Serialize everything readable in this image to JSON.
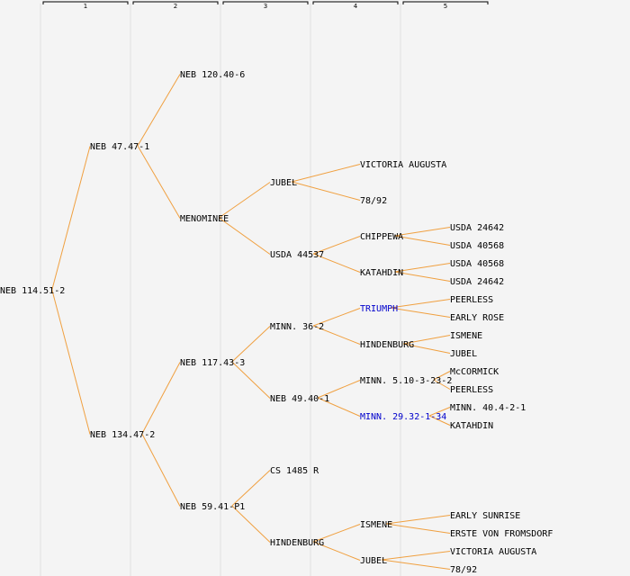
{
  "generations": [
    "1",
    "2",
    "3",
    "4",
    "5"
  ],
  "colors": {
    "line": "#f0a040",
    "link": "#0000cc",
    "text": "#000000",
    "column": "#e0e0e0",
    "background": "#f4f4f4"
  },
  "nodes": [
    {
      "id": "n0",
      "label": "NEB 114.51-2",
      "gen": 1,
      "row": 16
    },
    {
      "id": "n1",
      "label": "NEB 47.47-1",
      "gen": 2,
      "row": 8,
      "parent": "n0"
    },
    {
      "id": "n2",
      "label": "NEB 134.47-2",
      "gen": 2,
      "row": 24,
      "parent": "n0"
    },
    {
      "id": "n3",
      "label": "NEB 120.40-6",
      "gen": 3,
      "row": 4,
      "parent": "n1"
    },
    {
      "id": "n4",
      "label": "MENOMINEE",
      "gen": 3,
      "row": 12,
      "parent": "n1"
    },
    {
      "id": "n5",
      "label": "NEB 117.43-3",
      "gen": 3,
      "row": 20,
      "parent": "n2"
    },
    {
      "id": "n6",
      "label": "NEB 59.41-P1",
      "gen": 3,
      "row": 28,
      "parent": "n2"
    },
    {
      "id": "n7",
      "label": "JUBEL",
      "gen": 4,
      "row": 10,
      "parent": "n4"
    },
    {
      "id": "n8",
      "label": "USDA 44537",
      "gen": 4,
      "row": 14,
      "parent": "n4"
    },
    {
      "id": "n9",
      "label": "MINN. 36-2",
      "gen": 4,
      "row": 18,
      "parent": "n5"
    },
    {
      "id": "n10",
      "label": "NEB 49.40-1",
      "gen": 4,
      "row": 22,
      "parent": "n5"
    },
    {
      "id": "n11",
      "label": "CS 1485 R",
      "gen": 4,
      "row": 26,
      "parent": "n6"
    },
    {
      "id": "n12",
      "label": "HINDENBURG",
      "gen": 4,
      "row": 30,
      "parent": "n6"
    },
    {
      "id": "n13",
      "label": "VICTORIA AUGUSTA",
      "gen": 5,
      "row": 9,
      "parent": "n7"
    },
    {
      "id": "n14",
      "label": "78/92",
      "gen": 5,
      "row": 11,
      "parent": "n7"
    },
    {
      "id": "n15",
      "label": "CHIPPEWA",
      "gen": 5,
      "row": 13,
      "parent": "n8"
    },
    {
      "id": "n16",
      "label": "KATAHDIN",
      "gen": 5,
      "row": 15,
      "parent": "n8"
    },
    {
      "id": "n17",
      "label": "TRIUMPH",
      "gen": 5,
      "row": 17,
      "parent": "n9",
      "link": true
    },
    {
      "id": "n18",
      "label": "HINDENBURG",
      "gen": 5,
      "row": 19,
      "parent": "n9"
    },
    {
      "id": "n19",
      "label": "MINN. 5.10-3-23-2",
      "gen": 5,
      "row": 21,
      "parent": "n10"
    },
    {
      "id": "n20",
      "label": "MINN. 29.32-1-34",
      "gen": 5,
      "row": 23,
      "parent": "n10",
      "link": true
    },
    {
      "id": "n21",
      "label": "ISMENE",
      "gen": 5,
      "row": 29,
      "parent": "n12"
    },
    {
      "id": "n22",
      "label": "JUBEL",
      "gen": 5,
      "row": 31,
      "parent": "n12"
    },
    {
      "id": "n23",
      "label": "USDA 24642",
      "gen": 6,
      "row": 12.5,
      "parent": "n15"
    },
    {
      "id": "n24",
      "label": "USDA 40568",
      "gen": 6,
      "row": 13.5,
      "parent": "n15"
    },
    {
      "id": "n25",
      "label": "USDA 40568",
      "gen": 6,
      "row": 14.5,
      "parent": "n16"
    },
    {
      "id": "n26",
      "label": "USDA 24642",
      "gen": 6,
      "row": 15.5,
      "parent": "n16"
    },
    {
      "id": "n27",
      "label": "PEERLESS",
      "gen": 6,
      "row": 16.5,
      "parent": "n17"
    },
    {
      "id": "n28",
      "label": "EARLY ROSE",
      "gen": 6,
      "row": 17.5,
      "parent": "n17"
    },
    {
      "id": "n29",
      "label": "ISMENE",
      "gen": 6,
      "row": 18.5,
      "parent": "n18"
    },
    {
      "id": "n30",
      "label": "JUBEL",
      "gen": 6,
      "row": 19.5,
      "parent": "n18"
    },
    {
      "id": "n31",
      "label": "McCORMICK",
      "gen": 6,
      "row": 20.5,
      "parent": "n19"
    },
    {
      "id": "n32",
      "label": "PEERLESS",
      "gen": 6,
      "row": 21.5,
      "parent": "n19"
    },
    {
      "id": "n33",
      "label": "MINN. 40.4-2-1",
      "gen": 6,
      "row": 22.5,
      "parent": "n20"
    },
    {
      "id": "n34",
      "label": "KATAHDIN",
      "gen": 6,
      "row": 23.5,
      "parent": "n20"
    },
    {
      "id": "n35",
      "label": "EARLY SUNRISE",
      "gen": 6,
      "row": 28.5,
      "parent": "n21"
    },
    {
      "id": "n36",
      "label": "ERSTE VON FROMSDORF",
      "gen": 6,
      "row": 29.5,
      "parent": "n21"
    },
    {
      "id": "n37",
      "label": "VICTORIA AUGUSTA",
      "gen": 6,
      "row": 30.5,
      "parent": "n22"
    },
    {
      "id": "n38",
      "label": "78/92",
      "gen": 6,
      "row": 31.5,
      "parent": "n22"
    }
  ]
}
